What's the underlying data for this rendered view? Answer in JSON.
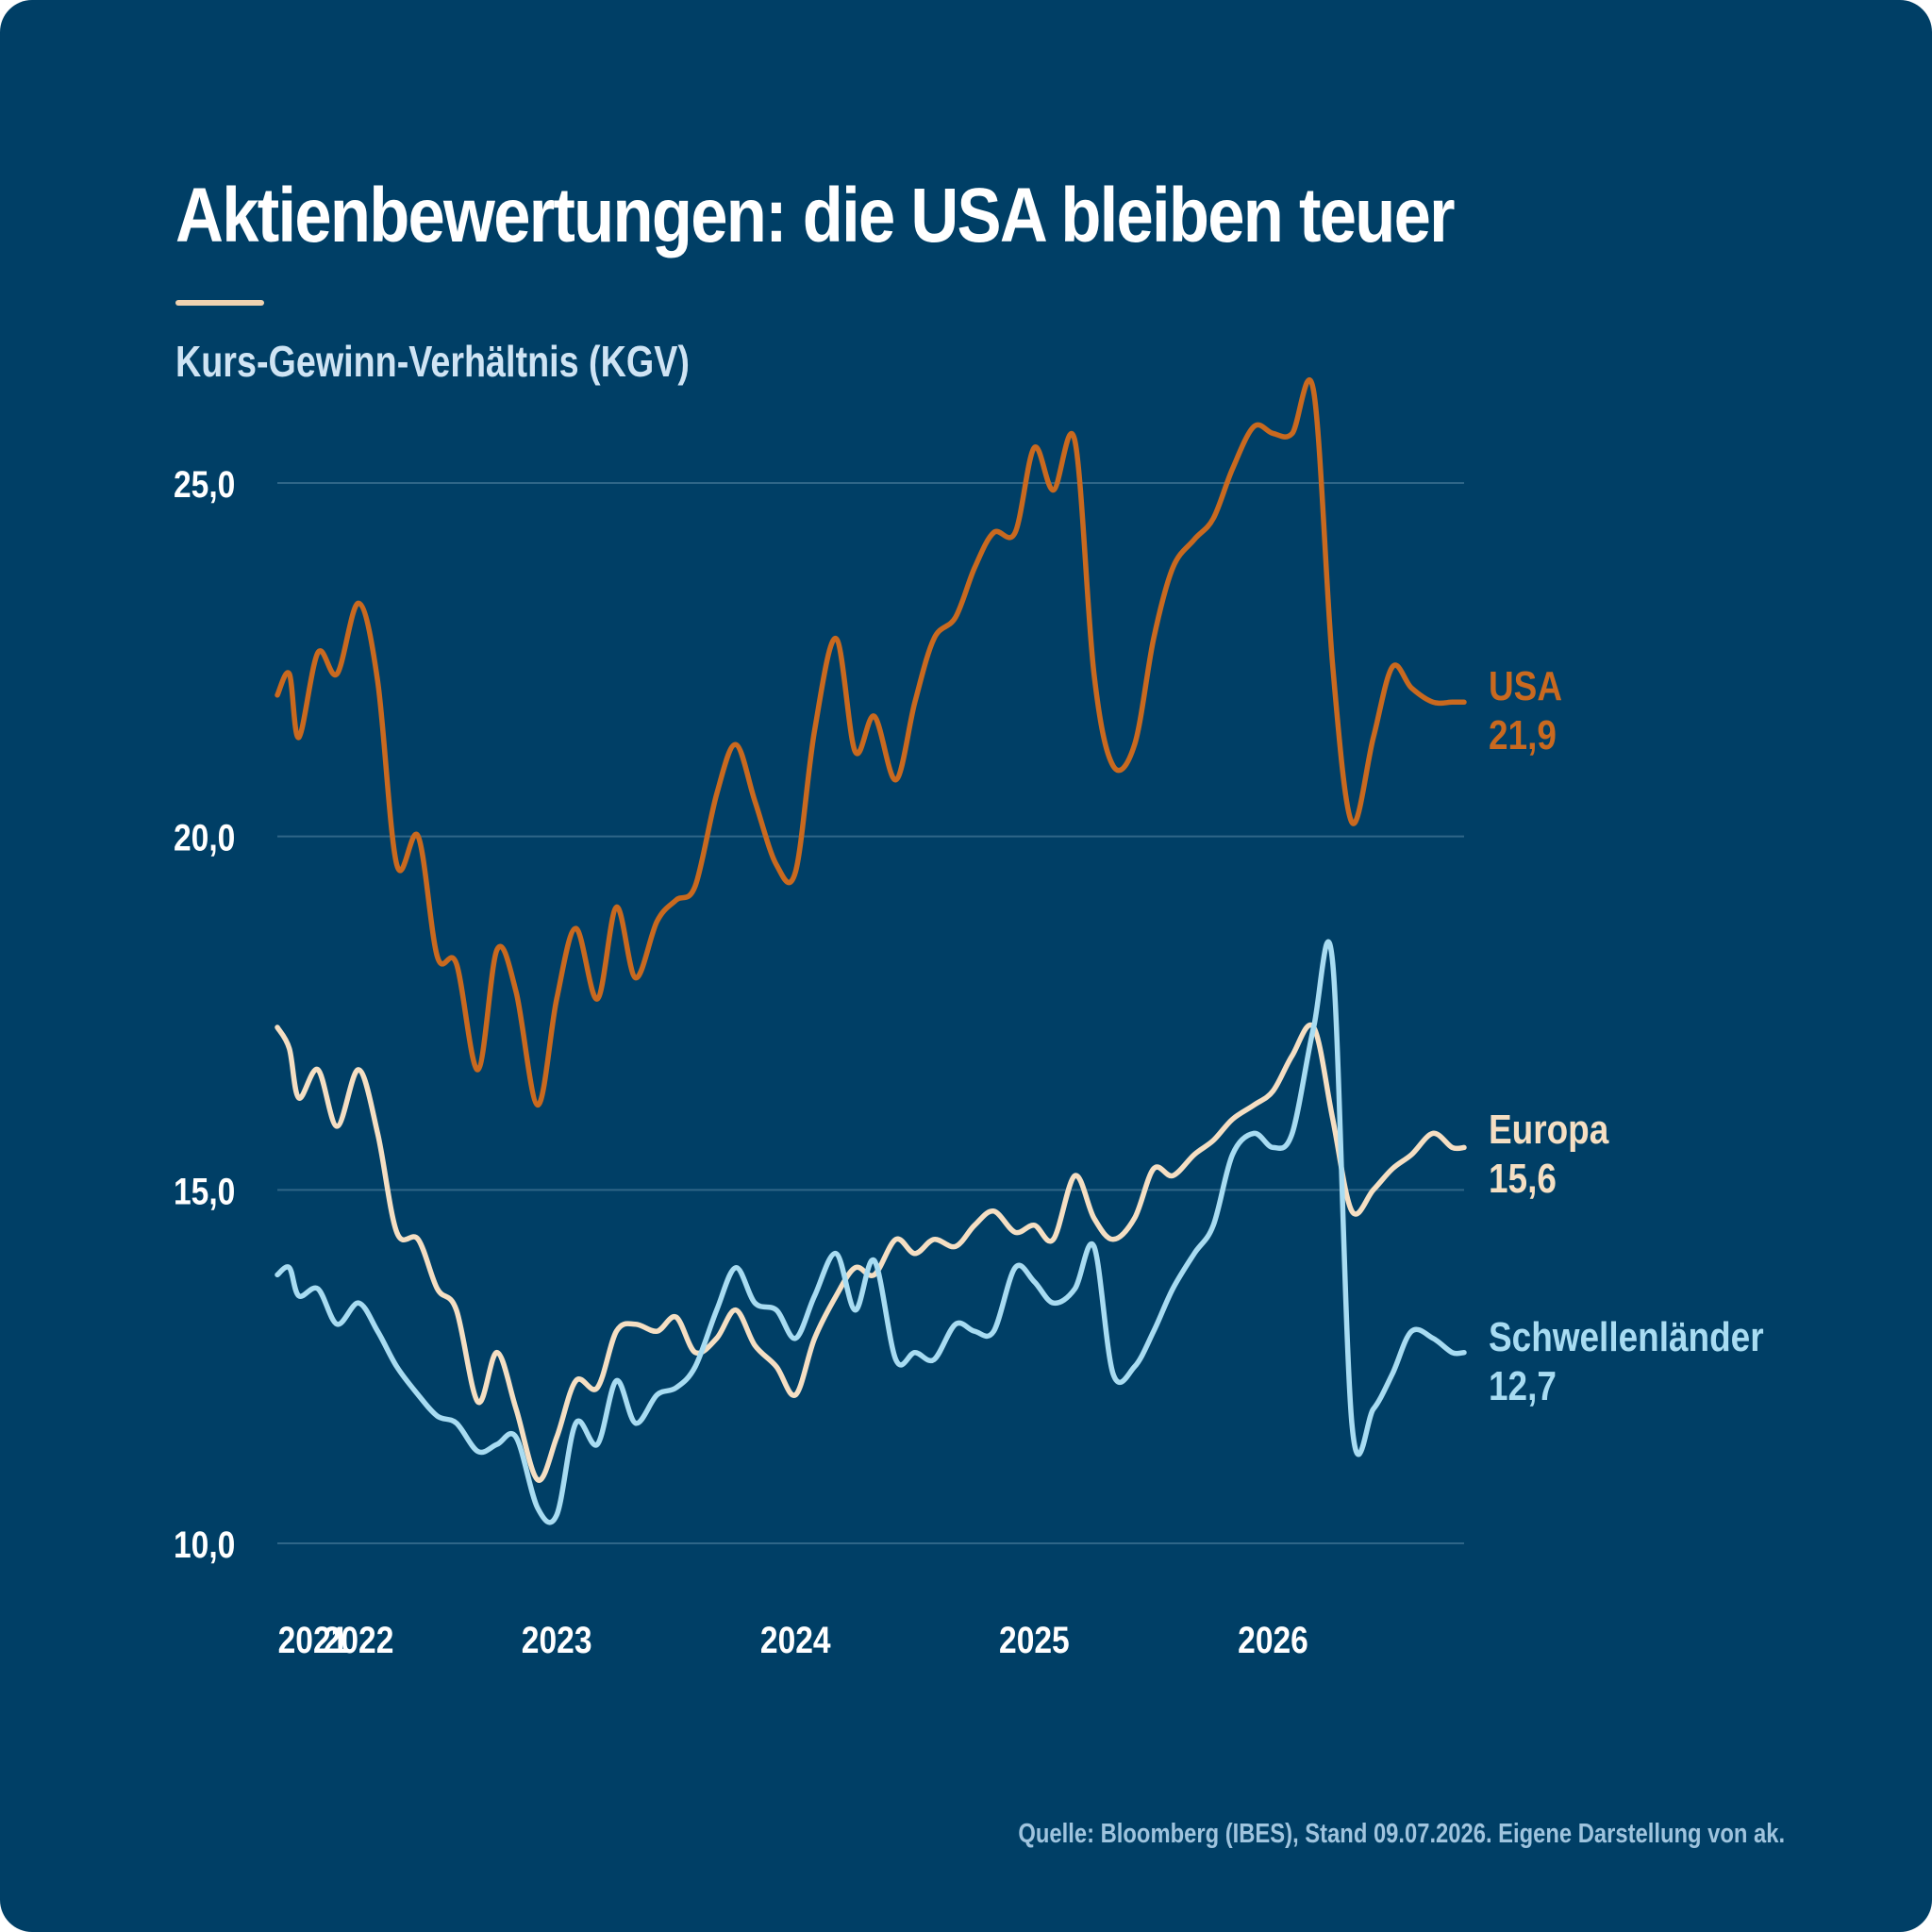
{
  "title": "Aktienbewertungen: die USA bleiben teuer",
  "subtitle": "Kurs-Gewinn-Verhältnis (KGV)",
  "source": "Quelle: Bloomberg (IBES), Stand 09.07.2026. Eigene Darstellung von ak.",
  "colors": {
    "background": "#003f66",
    "usa": "#c9691f",
    "europa": "#f5dfc3",
    "schwellenlaender": "#a8dcf2",
    "grid": "#2f6688",
    "accent": "#f0d2b0"
  },
  "chart_data": {
    "type": "line",
    "ylim": [
      10,
      25
    ],
    "yticks": [
      {
        "value": 25,
        "label": "25,0"
      },
      {
        "value": 20,
        "label": "20,0"
      },
      {
        "value": 15,
        "label": "15,0"
      },
      {
        "value": 10,
        "label": "10,0"
      }
    ],
    "xlim": [
      2021.83,
      2026.8
    ],
    "xticks": [
      {
        "value": 2021.98,
        "label": "2021"
      },
      {
        "value": 2022.17,
        "label": "2022"
      },
      {
        "value": 2023.0,
        "label": "2023"
      },
      {
        "value": 2024.0,
        "label": "2024"
      },
      {
        "value": 2025.0,
        "label": "2025"
      },
      {
        "value": 2026.0,
        "label": "2026"
      }
    ],
    "grid": true,
    "legend": "end-of-line labels",
    "series": [
      {
        "name": "USA",
        "end_value": "21,9",
        "x": [
          2021.83,
          2021.88,
          2021.92,
          2022.0,
          2022.08,
          2022.17,
          2022.25,
          2022.33,
          2022.42,
          2022.5,
          2022.58,
          2022.67,
          2022.75,
          2022.83,
          2022.92,
          2023.0,
          2023.08,
          2023.17,
          2023.25,
          2023.33,
          2023.42,
          2023.5,
          2023.58,
          2023.67,
          2023.75,
          2023.83,
          2023.92,
          2024.0,
          2024.08,
          2024.17,
          2024.25,
          2024.33,
          2024.42,
          2024.5,
          2024.58,
          2024.67,
          2024.75,
          2024.83,
          2024.92,
          2025.0,
          2025.08,
          2025.17,
          2025.25,
          2025.33,
          2025.42,
          2025.5,
          2025.58,
          2025.67,
          2025.75,
          2025.83,
          2025.92,
          2026.0,
          2026.08,
          2026.17,
          2026.25,
          2026.33,
          2026.42,
          2026.5,
          2026.58,
          2026.67,
          2026.75,
          2026.8
        ],
        "values": [
          22.0,
          22.3,
          21.4,
          22.6,
          22.3,
          23.3,
          22.2,
          19.6,
          20.0,
          18.3,
          18.2,
          16.7,
          18.4,
          17.8,
          16.2,
          17.7,
          18.7,
          17.7,
          19.0,
          18.0,
          18.8,
          19.1,
          19.3,
          20.6,
          21.3,
          20.5,
          19.6,
          19.5,
          21.5,
          22.8,
          21.2,
          21.7,
          20.8,
          21.9,
          22.8,
          23.1,
          23.8,
          24.3,
          24.3,
          25.5,
          24.9,
          25.6,
          22.3,
          21.0,
          21.3,
          22.8,
          23.8,
          24.2,
          24.5,
          25.2,
          25.8,
          25.7,
          25.7,
          26.3,
          22.4,
          20.2,
          21.4,
          22.4,
          22.1,
          21.9,
          21.9,
          21.9
        ]
      },
      {
        "name": "Europa",
        "end_value": "15,6",
        "x": [
          2021.83,
          2021.88,
          2021.92,
          2022.0,
          2022.08,
          2022.17,
          2022.25,
          2022.33,
          2022.42,
          2022.5,
          2022.58,
          2022.67,
          2022.75,
          2022.83,
          2022.92,
          2023.0,
          2023.08,
          2023.17,
          2023.25,
          2023.33,
          2023.42,
          2023.5,
          2023.58,
          2023.67,
          2023.75,
          2023.83,
          2023.92,
          2024.0,
          2024.08,
          2024.17,
          2024.25,
          2024.33,
          2024.42,
          2024.5,
          2024.58,
          2024.67,
          2024.75,
          2024.83,
          2024.92,
          2025.0,
          2025.08,
          2025.17,
          2025.25,
          2025.33,
          2025.42,
          2025.5,
          2025.58,
          2025.67,
          2025.75,
          2025.83,
          2025.92,
          2026.0,
          2026.08,
          2026.17,
          2026.25,
          2026.33,
          2026.42,
          2026.5,
          2026.58,
          2026.67,
          2026.75,
          2026.8
        ],
        "values": [
          17.3,
          17.0,
          16.3,
          16.7,
          15.9,
          16.7,
          15.8,
          14.4,
          14.3,
          13.6,
          13.3,
          12.0,
          12.7,
          11.9,
          10.9,
          11.5,
          12.3,
          12.2,
          13.0,
          13.1,
          13.0,
          13.2,
          12.7,
          12.9,
          13.3,
          12.8,
          12.5,
          12.1,
          12.9,
          13.5,
          13.9,
          13.8,
          14.3,
          14.1,
          14.3,
          14.2,
          14.5,
          14.7,
          14.4,
          14.5,
          14.3,
          15.2,
          14.6,
          14.3,
          14.6,
          15.3,
          15.2,
          15.5,
          15.7,
          16.0,
          16.2,
          16.4,
          16.9,
          17.3,
          16.0,
          14.7,
          15.0,
          15.3,
          15.5,
          15.8,
          15.6,
          15.6
        ]
      },
      {
        "name": "Schwellenländer",
        "end_value": "12,7",
        "x": [
          2021.83,
          2021.88,
          2021.92,
          2022.0,
          2022.08,
          2022.17,
          2022.25,
          2022.33,
          2022.42,
          2022.5,
          2022.58,
          2022.67,
          2022.75,
          2022.83,
          2022.92,
          2023.0,
          2023.08,
          2023.17,
          2023.25,
          2023.33,
          2023.42,
          2023.5,
          2023.58,
          2023.67,
          2023.75,
          2023.83,
          2023.92,
          2024.0,
          2024.08,
          2024.17,
          2024.25,
          2024.33,
          2024.42,
          2024.5,
          2024.58,
          2024.67,
          2024.75,
          2024.83,
          2024.92,
          2025.0,
          2025.08,
          2025.17,
          2025.25,
          2025.33,
          2025.42,
          2025.5,
          2025.58,
          2025.67,
          2025.75,
          2025.83,
          2025.92,
          2026.0,
          2026.08,
          2026.17,
          2026.25,
          2026.33,
          2026.42,
          2026.5,
          2026.58,
          2026.67,
          2026.75,
          2026.8
        ],
        "values": [
          13.8,
          13.9,
          13.5,
          13.6,
          13.1,
          13.4,
          13.0,
          12.5,
          12.1,
          11.8,
          11.7,
          11.3,
          11.4,
          11.5,
          10.5,
          10.4,
          11.7,
          11.4,
          12.3,
          11.7,
          12.1,
          12.2,
          12.5,
          13.3,
          13.9,
          13.4,
          13.3,
          12.9,
          13.5,
          14.1,
          13.3,
          14.0,
          12.6,
          12.7,
          12.6,
          13.1,
          13.0,
          13.0,
          13.9,
          13.7,
          13.4,
          13.6,
          14.2,
          12.4,
          12.5,
          13.0,
          13.6,
          14.1,
          14.5,
          15.5,
          15.8,
          15.6,
          15.8,
          17.3,
          18.2,
          11.7,
          11.9,
          12.4,
          13.0,
          12.9,
          12.7,
          12.7
        ]
      }
    ]
  }
}
